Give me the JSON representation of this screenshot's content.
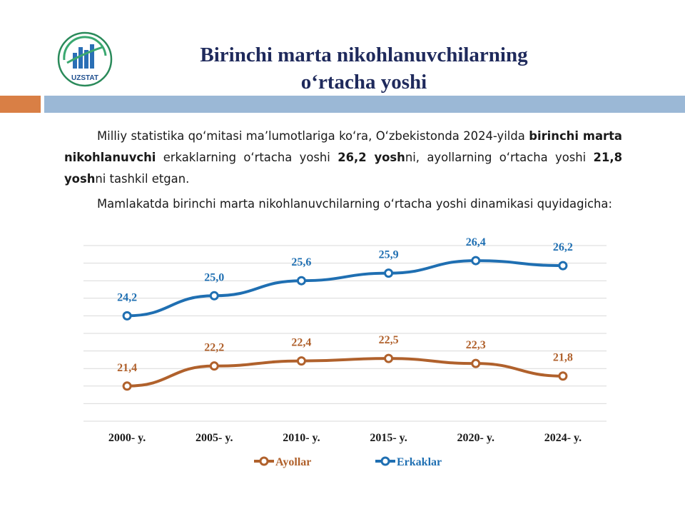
{
  "logo": {
    "text": "UZSTAT",
    "icon": "uzstat-logo-icon"
  },
  "title": {
    "line1": "Birinchi marta nikohlanuvchilarning",
    "line2": "oʻrtacha yoshi"
  },
  "paragraph1": {
    "t1": "Milliy statistika qoʻmitasi maʼlumotlariga koʻra, Oʻzbekistonda 2024-yilda ",
    "b1": "birinchi marta nikohlanuvchi",
    "t2": " erkaklarning oʻrtacha yoshi  ",
    "b2": "26,2 yosh",
    "t3": "ni, ayollarning oʻrtacha yoshi ",
    "b3": "21,8 yosh",
    "t4": "ni tashkil etgan."
  },
  "paragraph2": "Mamlakatda birinchi marta nikohlanuvchilarning oʻrtacha yoshi dinamikasi quyidagicha:",
  "colors": {
    "erkaklar": "#1f6fb2",
    "ayollar": "#b0612c",
    "label_dark": "#1f2a5c",
    "grid": "#d9d9d9"
  },
  "chart_data": {
    "type": "line",
    "categories": [
      "2000- y.",
      "2005- y.",
      "2010- y.",
      "2015- y.",
      "2020- y.",
      "2024- y."
    ],
    "series": [
      {
        "name": "Erkaklar",
        "values": [
          24.2,
          25.0,
          25.6,
          25.9,
          26.4,
          26.2
        ],
        "labels": [
          "24,2",
          "25,0",
          "25,6",
          "25,9",
          "26,4",
          "26,2"
        ]
      },
      {
        "name": "Ayollar",
        "values": [
          21.4,
          22.2,
          22.4,
          22.5,
          22.3,
          21.8
        ],
        "labels": [
          "21,4",
          "22,2",
          "22,4",
          "22,5",
          "22,3",
          "21,8"
        ]
      }
    ],
    "legend": [
      "Ayollar",
      "Erkaklar"
    ],
    "legend_position": "bottom",
    "grid": true
  }
}
